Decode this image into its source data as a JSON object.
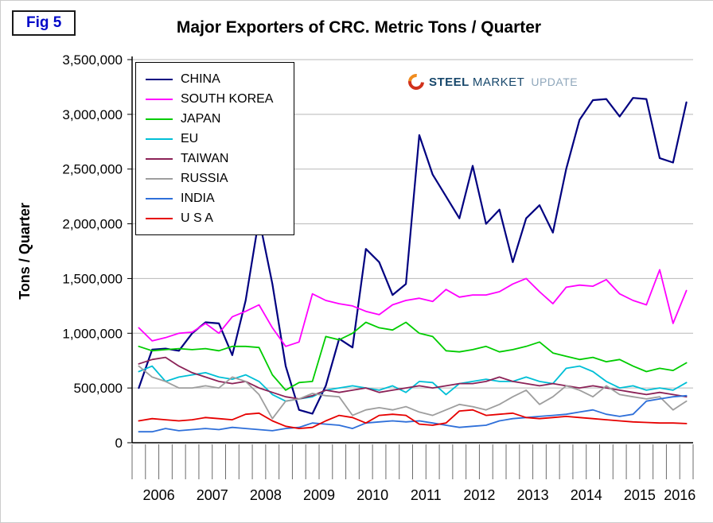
{
  "figure": {
    "label": "Fig 5"
  },
  "logo": {
    "steel": "STEEL",
    "market": "MARKET",
    "update": "UPDATE"
  },
  "chart_data": {
    "type": "line",
    "title": "Major Exporters of CRC. Metric Tons / Quarter",
    "ylabel": "Tons / Quarter",
    "xlabel": "",
    "ylim": [
      0,
      3500000
    ],
    "y_tick_step": 500000,
    "y_tick_labels": [
      "0",
      "500,000",
      "1,000,000",
      "1,500,000",
      "2,000,000",
      "2,500,000",
      "3,000,000",
      "3,500,000"
    ],
    "grid": true,
    "legend_position": "top-left",
    "x_unit": "quarter",
    "x_range": "2006 Q1 - 2016 Q2",
    "x_years": [
      {
        "label": "2006",
        "quarters": 4
      },
      {
        "label": "2007",
        "quarters": 4
      },
      {
        "label": "2008",
        "quarters": 4
      },
      {
        "label": "2009",
        "quarters": 4
      },
      {
        "label": "2010",
        "quarters": 4
      },
      {
        "label": "2011",
        "quarters": 4
      },
      {
        "label": "2012",
        "quarters": 4
      },
      {
        "label": "2013",
        "quarters": 4
      },
      {
        "label": "2014",
        "quarters": 4
      },
      {
        "label": "2015",
        "quarters": 4
      },
      {
        "label": "2016",
        "quarters": 2
      }
    ],
    "series": [
      {
        "name": "CHINA",
        "color": "#000080",
        "values": [
          500000,
          850000,
          860000,
          840000,
          1000000,
          1100000,
          1090000,
          800000,
          1300000,
          2050000,
          1450000,
          700000,
          300000,
          265000,
          520000,
          950000,
          870000,
          1770000,
          1650000,
          1350000,
          1450000,
          2810000,
          2450000,
          2250000,
          2050000,
          2530000,
          2000000,
          2130000,
          1650000,
          2050000,
          2170000,
          1920000,
          2500000,
          2950000,
          3130000,
          3140000,
          2980000,
          3150000,
          3140000,
          2600000,
          2560000,
          3110000
        ]
      },
      {
        "name": "SOUTH KOREA",
        "color": "#FF00FF",
        "values": [
          1050000,
          930000,
          960000,
          1000000,
          1010000,
          1090000,
          1000000,
          1150000,
          1200000,
          1260000,
          1050000,
          880000,
          920000,
          1360000,
          1300000,
          1270000,
          1250000,
          1200000,
          1170000,
          1260000,
          1300000,
          1320000,
          1290000,
          1400000,
          1330000,
          1350000,
          1350000,
          1380000,
          1450000,
          1500000,
          1380000,
          1270000,
          1420000,
          1440000,
          1430000,
          1490000,
          1360000,
          1300000,
          1260000,
          1580000,
          1090000,
          1390000
        ]
      },
      {
        "name": "JAPAN",
        "color": "#00CC00",
        "values": [
          880000,
          840000,
          850000,
          860000,
          850000,
          860000,
          840000,
          880000,
          880000,
          870000,
          620000,
          480000,
          550000,
          560000,
          970000,
          940000,
          1000000,
          1100000,
          1050000,
          1030000,
          1100000,
          1000000,
          970000,
          840000,
          830000,
          850000,
          880000,
          830000,
          850000,
          880000,
          920000,
          820000,
          790000,
          760000,
          780000,
          740000,
          760000,
          700000,
          650000,
          680000,
          660000,
          730000
        ]
      },
      {
        "name": "EU",
        "color": "#00BFD6",
        "values": [
          650000,
          700000,
          560000,
          600000,
          620000,
          640000,
          600000,
          580000,
          620000,
          560000,
          440000,
          380000,
          400000,
          420000,
          480000,
          500000,
          520000,
          500000,
          480000,
          520000,
          460000,
          560000,
          550000,
          440000,
          540000,
          560000,
          580000,
          560000,
          560000,
          600000,
          560000,
          540000,
          680000,
          700000,
          650000,
          560000,
          500000,
          520000,
          480000,
          500000,
          480000,
          550000
        ]
      },
      {
        "name": "TAIWAN",
        "color": "#8B2257",
        "values": [
          720000,
          760000,
          780000,
          700000,
          640000,
          600000,
          560000,
          540000,
          560000,
          500000,
          460000,
          420000,
          400000,
          430000,
          480000,
          460000,
          480000,
          500000,
          460000,
          480000,
          500000,
          520000,
          500000,
          520000,
          540000,
          540000,
          560000,
          600000,
          560000,
          540000,
          520000,
          540000,
          520000,
          500000,
          520000,
          500000,
          480000,
          460000,
          440000,
          460000,
          440000,
          420000
        ]
      },
      {
        "name": "RUSSIA",
        "color": "#9E9E9E",
        "values": [
          700000,
          600000,
          560000,
          500000,
          500000,
          520000,
          500000,
          600000,
          560000,
          440000,
          220000,
          380000,
          400000,
          450000,
          430000,
          420000,
          250000,
          300000,
          320000,
          300000,
          330000,
          280000,
          250000,
          300000,
          350000,
          330000,
          300000,
          350000,
          420000,
          480000,
          350000,
          420000,
          520000,
          480000,
          420000,
          520000,
          440000,
          420000,
          400000,
          420000,
          300000,
          380000
        ]
      },
      {
        "name": "INDIA",
        "color": "#2E6FD9",
        "values": [
          100000,
          100000,
          130000,
          110000,
          120000,
          130000,
          120000,
          140000,
          130000,
          120000,
          110000,
          130000,
          140000,
          180000,
          170000,
          160000,
          130000,
          180000,
          190000,
          200000,
          190000,
          200000,
          180000,
          160000,
          140000,
          150000,
          160000,
          200000,
          220000,
          230000,
          240000,
          250000,
          260000,
          280000,
          300000,
          260000,
          240000,
          260000,
          380000,
          400000,
          420000,
          430000
        ]
      },
      {
        "name": "U S A",
        "color": "#E60000",
        "values": [
          200000,
          220000,
          210000,
          200000,
          210000,
          230000,
          220000,
          210000,
          260000,
          270000,
          200000,
          150000,
          130000,
          140000,
          200000,
          250000,
          230000,
          180000,
          250000,
          260000,
          250000,
          170000,
          160000,
          180000,
          290000,
          300000,
          250000,
          260000,
          270000,
          230000,
          220000,
          230000,
          240000,
          230000,
          220000,
          210000,
          200000,
          190000,
          185000,
          180000,
          180000,
          175000
        ]
      }
    ]
  }
}
